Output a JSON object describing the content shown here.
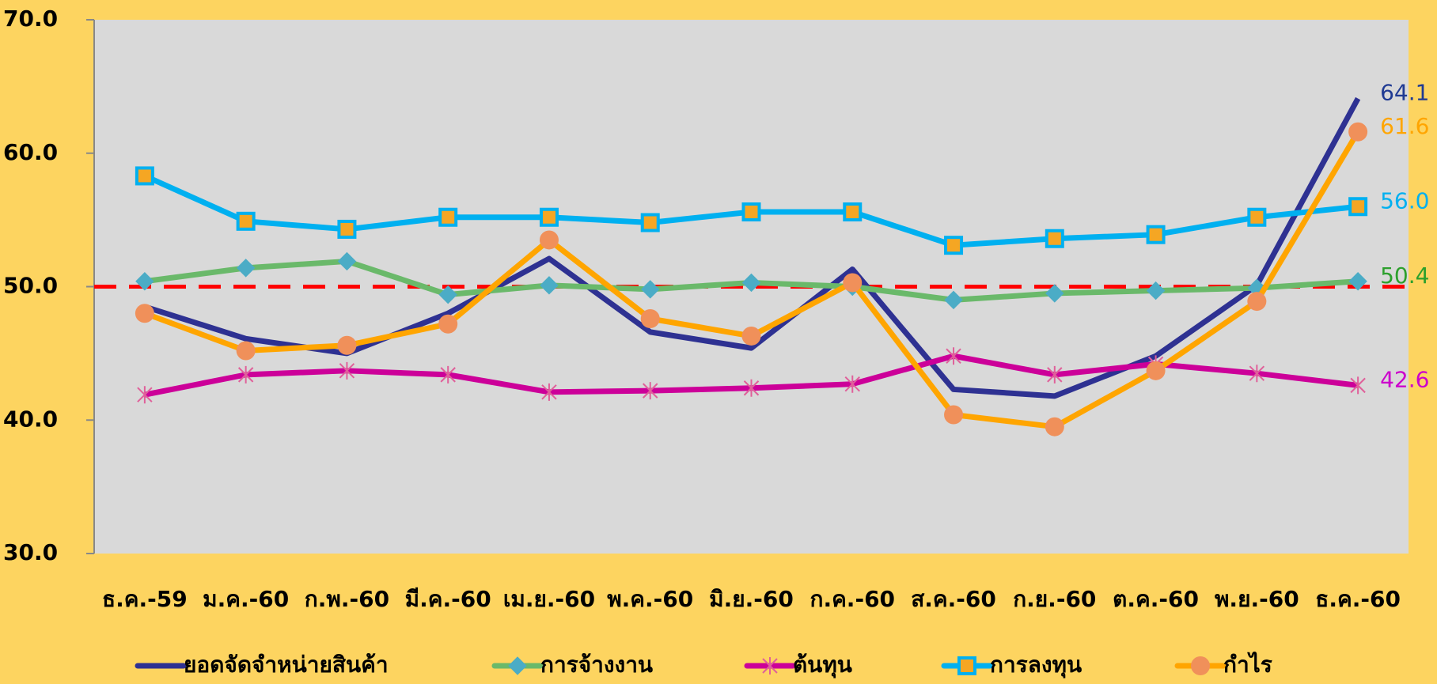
{
  "chart_data": {
    "type": "line",
    "categories": [
      "ธ.ค.-59",
      "ม.ค.-60",
      "ก.พ.-60",
      "มี.ค.-60",
      "เม.ย.-60",
      "พ.ค.-60",
      "มิ.ย.-60",
      "ก.ค.-60",
      "ส.ค.-60",
      "ก.ย.-60",
      "ต.ค.-60",
      "พ.ย.-60",
      "ธ.ค.-60"
    ],
    "series": [
      {
        "name": "ยอดจัดจำหน่ายสินค้า",
        "color": "#2e3192",
        "marker": "none",
        "label_color": "#1f3a93",
        "values": [
          48.5,
          46.1,
          45.0,
          48.0,
          52.1,
          46.6,
          45.4,
          51.3,
          42.3,
          41.8,
          44.8,
          50.1,
          64.1
        ],
        "value_labels": [
          null,
          null,
          null,
          null,
          null,
          null,
          null,
          null,
          null,
          null,
          null,
          null,
          "64.1"
        ]
      },
      {
        "name": "การจ้างงาน",
        "color": "#6ab96a",
        "marker": "diamond",
        "marker_color": "#4bacc6",
        "label_color": "#2ca02c",
        "values": [
          50.4,
          51.4,
          51.9,
          49.4,
          50.1,
          49.8,
          50.3,
          50.0,
          49.0,
          49.5,
          49.7,
          49.9,
          50.4
        ],
        "value_labels": [
          null,
          null,
          null,
          null,
          null,
          null,
          null,
          null,
          null,
          null,
          null,
          null,
          "50.4"
        ]
      },
      {
        "name": "ต้นทุน",
        "color": "#cc0099",
        "marker": "star",
        "marker_color": "#e0609a",
        "label_color": "#cc00cc",
        "values": [
          41.9,
          43.4,
          43.7,
          43.4,
          42.1,
          42.2,
          42.4,
          42.7,
          44.8,
          43.4,
          44.2,
          43.5,
          42.6
        ],
        "value_labels": [
          null,
          null,
          null,
          null,
          null,
          null,
          null,
          null,
          null,
          null,
          null,
          null,
          "42.6"
        ]
      },
      {
        "name": "การลงทุน",
        "color": "#00b0f0",
        "marker": "square",
        "marker_color": "#f5a623",
        "label_color": "#00b0f0",
        "values": [
          58.3,
          54.9,
          54.3,
          55.2,
          55.2,
          54.8,
          55.6,
          55.6,
          53.1,
          53.6,
          53.9,
          55.2,
          56.0
        ],
        "value_labels": [
          null,
          null,
          null,
          null,
          null,
          null,
          null,
          null,
          null,
          null,
          null,
          null,
          "56.0"
        ]
      },
      {
        "name": "กำไร",
        "color": "#ffa500",
        "marker": "circle",
        "marker_color": "#f0905a",
        "label_color": "#ffa500",
        "values": [
          48.0,
          45.2,
          45.6,
          47.2,
          53.5,
          47.6,
          46.3,
          50.3,
          40.4,
          39.5,
          43.7,
          48.9,
          61.6
        ],
        "value_labels": [
          null,
          null,
          null,
          null,
          null,
          null,
          null,
          null,
          null,
          null,
          null,
          null,
          "61.6"
        ]
      }
    ],
    "ylim": [
      30,
      70
    ],
    "yticks": [
      {
        "value": 30,
        "label": "30.0"
      },
      {
        "value": 40,
        "label": "40.0"
      },
      {
        "value": 50,
        "label": "50.0"
      },
      {
        "value": 60,
        "label": "60.0"
      },
      {
        "value": 70,
        "label": "70.0"
      }
    ],
    "threshold": {
      "value": 50,
      "color": "#ff0000"
    },
    "legend": "bottom"
  }
}
